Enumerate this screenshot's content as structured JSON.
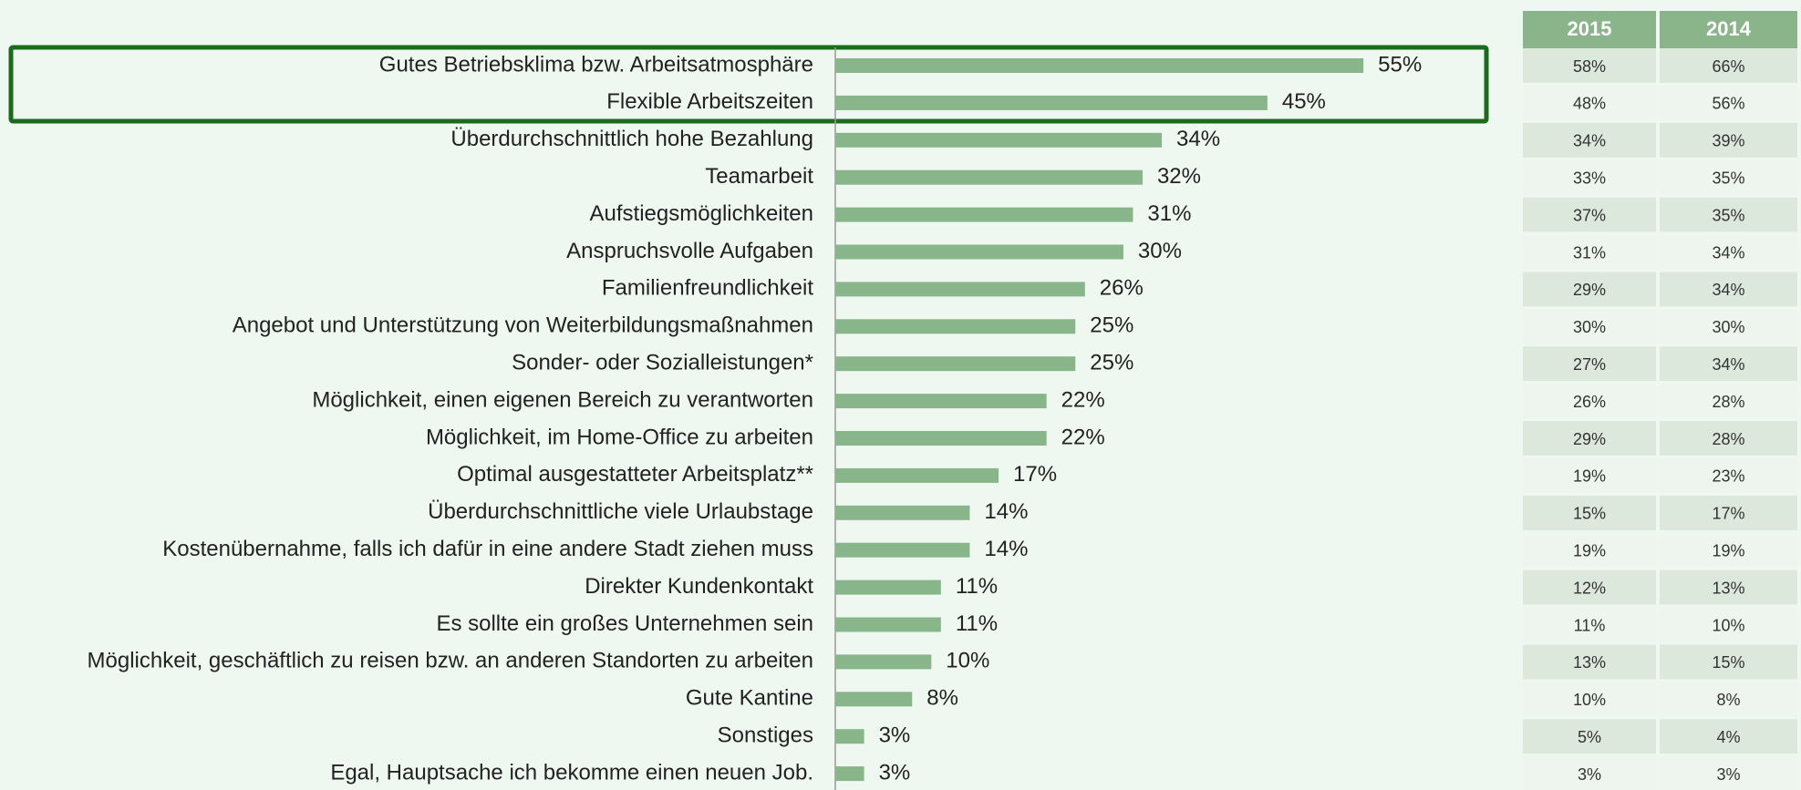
{
  "chart_data": {
    "type": "bar",
    "orientation": "horizontal",
    "color": "#88b68a",
    "categories": [
      "Gutes Betriebsklima bzw. Arbeitsatmosphäre",
      "Flexible Arbeitszeiten",
      "Überdurchschnittlich hohe Bezahlung",
      "Teamarbeit",
      "Aufstiegsmöglichkeiten",
      "Anspruchsvolle Aufgaben",
      "Familienfreundlichkeit",
      "Angebot und Unterstützung von Weiterbildungsmaßnahmen",
      "Sonder- oder Sozialleistungen*",
      "Möglichkeit, einen eigenen Bereich zu verantworten",
      "Möglichkeit, im Home-Office zu arbeiten",
      "Optimal ausgestatteter Arbeitsplatz**",
      "Überdurchschnittliche viele Urlaubstage",
      "Kostenübernahme, falls ich dafür in eine andere Stadt ziehen muss",
      "Direkter Kundenkontakt",
      "Es sollte ein großes Unternehmen sein",
      "Möglichkeit, geschäftlich zu reisen bzw. an anderen Standorten zu arbeiten",
      "Gute Kantine",
      "Sonstiges",
      "Egal, Hauptsache ich bekomme einen neuen Job."
    ],
    "values": [
      55,
      45,
      34,
      32,
      31,
      30,
      26,
      25,
      25,
      22,
      22,
      17,
      14,
      14,
      11,
      11,
      10,
      8,
      3,
      3
    ],
    "value_labels": [
      "55%",
      "45%",
      "34%",
      "32%",
      "31%",
      "30%",
      "26%",
      "25%",
      "25%",
      "22%",
      "22%",
      "17%",
      "14%",
      "14%",
      "11%",
      "11%",
      "10%",
      "8%",
      "3%",
      "3%"
    ],
    "table": {
      "columns": [
        "2015",
        "2014"
      ],
      "rows": [
        [
          "58%",
          "66%"
        ],
        [
          "48%",
          "56%"
        ],
        [
          "34%",
          "39%"
        ],
        [
          "33%",
          "35%"
        ],
        [
          "37%",
          "35%"
        ],
        [
          "31%",
          "34%"
        ],
        [
          "29%",
          "34%"
        ],
        [
          "30%",
          "30%"
        ],
        [
          "27%",
          "34%"
        ],
        [
          "26%",
          "28%"
        ],
        [
          "29%",
          "28%"
        ],
        [
          "19%",
          "23%"
        ],
        [
          "15%",
          "17%"
        ],
        [
          "19%",
          "19%"
        ],
        [
          "12%",
          "13%"
        ],
        [
          "11%",
          "10%"
        ],
        [
          "13%",
          "15%"
        ],
        [
          "10%",
          "8%"
        ],
        [
          "5%",
          "4%"
        ],
        [
          "3%",
          "3%"
        ]
      ]
    }
  }
}
